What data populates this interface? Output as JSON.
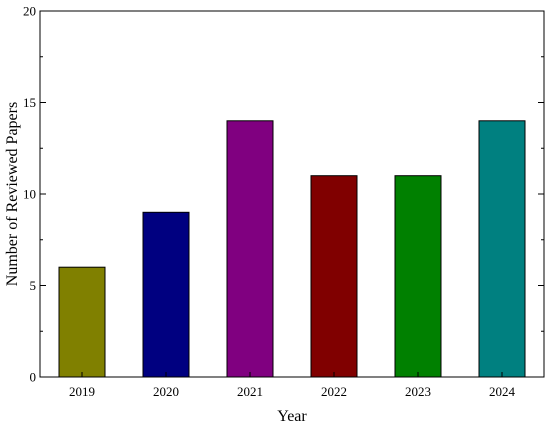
{
  "chart_data": {
    "type": "bar",
    "title": "",
    "xlabel": "Year",
    "ylabel": "Number of Reviewed Papers",
    "categories": [
      "2019",
      "2020",
      "2021",
      "2022",
      "2023",
      "2024"
    ],
    "values": [
      6,
      9,
      14,
      11,
      11,
      14
    ],
    "colors": [
      "#808000",
      "#000080",
      "#800080",
      "#800000",
      "#008000",
      "#008080"
    ],
    "ylim": [
      0,
      20
    ],
    "yticks": [
      0,
      5,
      10,
      15,
      20
    ],
    "grid": false,
    "legend": "none"
  }
}
